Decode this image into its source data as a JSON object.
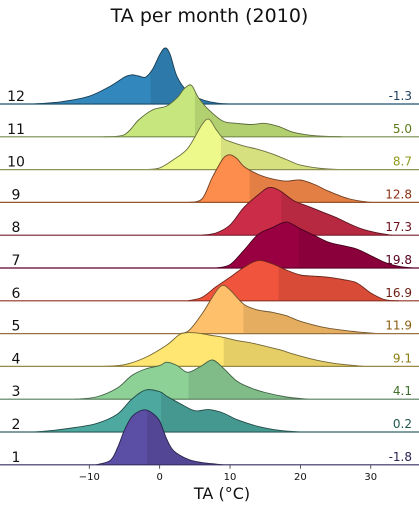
{
  "chart_data": {
    "type": "ridgeline",
    "title": "TA per month (2010)",
    "xlabel": "TA (°C)",
    "xlim": [
      -18,
      36
    ],
    "xticks": [
      -10,
      0,
      10,
      20,
      30
    ],
    "rows": [
      {
        "month": "12",
        "mean": -1.3,
        "mean_label": "-1.3",
        "color": "#3288bd",
        "label_color": "#1e3d5c",
        "density": [
          [
            -18,
            0.0
          ],
          [
            -14,
            0.04
          ],
          [
            -10,
            0.14
          ],
          [
            -7,
            0.32
          ],
          [
            -5,
            0.48
          ],
          [
            -4,
            0.52
          ],
          [
            -3,
            0.5
          ],
          [
            -2,
            0.48
          ],
          [
            -1,
            0.62
          ],
          [
            0,
            0.88
          ],
          [
            0.8,
            1.0
          ],
          [
            1.5,
            0.88
          ],
          [
            2.5,
            0.48
          ],
          [
            4,
            0.22
          ],
          [
            6,
            0.08
          ],
          [
            8,
            0.02
          ],
          [
            10,
            0.0
          ]
        ]
      },
      {
        "month": "11",
        "mean": 5.0,
        "mean_label": "5.0",
        "color": "#c7e77e",
        "label_color": "#5e7a1a",
        "density": [
          [
            -8,
            0.0
          ],
          [
            -5,
            0.04
          ],
          [
            -3,
            0.3
          ],
          [
            -1,
            0.48
          ],
          [
            1,
            0.55
          ],
          [
            2.5,
            0.7
          ],
          [
            3.5,
            0.86
          ],
          [
            4.5,
            0.92
          ],
          [
            5.5,
            0.7
          ],
          [
            7,
            0.48
          ],
          [
            9,
            0.28
          ],
          [
            11,
            0.24
          ],
          [
            13,
            0.22
          ],
          [
            15,
            0.24
          ],
          [
            17,
            0.18
          ],
          [
            19,
            0.08
          ],
          [
            22,
            0.02
          ],
          [
            26,
            0.0
          ]
        ]
      },
      {
        "month": "10",
        "mean": 8.7,
        "mean_label": "8.7",
        "color": "#eef98c",
        "label_color": "#8f9a1e",
        "density": [
          [
            -2,
            0.0
          ],
          [
            0,
            0.03
          ],
          [
            2,
            0.18
          ],
          [
            4,
            0.38
          ],
          [
            6,
            0.8
          ],
          [
            7,
            0.9
          ],
          [
            8,
            0.72
          ],
          [
            9,
            0.56
          ],
          [
            10,
            0.5
          ],
          [
            12,
            0.42
          ],
          [
            14,
            0.36
          ],
          [
            16,
            0.28
          ],
          [
            18,
            0.18
          ],
          [
            20,
            0.08
          ],
          [
            23,
            0.02
          ],
          [
            26,
            0.0
          ]
        ]
      },
      {
        "month": "9",
        "mean": 12.8,
        "mean_label": "12.8",
        "color": "#fc8d4c",
        "label_color": "#8a3010",
        "density": [
          [
            4,
            0.0
          ],
          [
            6,
            0.06
          ],
          [
            7.5,
            0.45
          ],
          [
            9,
            0.78
          ],
          [
            10,
            0.85
          ],
          [
            11,
            0.78
          ],
          [
            12,
            0.64
          ],
          [
            14,
            0.5
          ],
          [
            16,
            0.42
          ],
          [
            18,
            0.38
          ],
          [
            20,
            0.4
          ],
          [
            22,
            0.32
          ],
          [
            24,
            0.2
          ],
          [
            27,
            0.06
          ],
          [
            30,
            0.0
          ]
        ]
      },
      {
        "month": "8",
        "mean": 17.3,
        "mean_label": "17.3",
        "color": "#cb2d48",
        "label_color": "#6a0e1c",
        "density": [
          [
            6,
            0.0
          ],
          [
            8,
            0.04
          ],
          [
            10,
            0.18
          ],
          [
            12,
            0.5
          ],
          [
            14,
            0.72
          ],
          [
            15.5,
            0.85
          ],
          [
            17,
            0.8
          ],
          [
            19,
            0.62
          ],
          [
            21,
            0.52
          ],
          [
            23,
            0.42
          ],
          [
            25,
            0.32
          ],
          [
            27,
            0.2
          ],
          [
            29,
            0.1
          ],
          [
            31,
            0.04
          ],
          [
            33,
            0.0
          ]
        ]
      },
      {
        "month": "7",
        "mean": 19.8,
        "mean_label": "19.8",
        "color": "#990042",
        "label_color": "#55001f",
        "density": [
          [
            8,
            0.0
          ],
          [
            10,
            0.06
          ],
          [
            12,
            0.32
          ],
          [
            14,
            0.6
          ],
          [
            16,
            0.72
          ],
          [
            18,
            0.82
          ],
          [
            20,
            0.7
          ],
          [
            22,
            0.58
          ],
          [
            24,
            0.46
          ],
          [
            26,
            0.4
          ],
          [
            28,
            0.34
          ],
          [
            30,
            0.22
          ],
          [
            32,
            0.1
          ],
          [
            34,
            0.03
          ],
          [
            36,
            0.0
          ]
        ]
      },
      {
        "month": "6",
        "mean": 16.9,
        "mean_label": "16.9",
        "color": "#f0543d",
        "label_color": "#6b2012",
        "density": [
          [
            4,
            0.0
          ],
          [
            6,
            0.06
          ],
          [
            8,
            0.25
          ],
          [
            10,
            0.42
          ],
          [
            12,
            0.6
          ],
          [
            14,
            0.72
          ],
          [
            16,
            0.66
          ],
          [
            18,
            0.55
          ],
          [
            20,
            0.46
          ],
          [
            22,
            0.44
          ],
          [
            24,
            0.42
          ],
          [
            26,
            0.38
          ],
          [
            28,
            0.32
          ],
          [
            30,
            0.14
          ],
          [
            32,
            0.02
          ],
          [
            34,
            0.0
          ]
        ]
      },
      {
        "month": "5",
        "mean": 11.9,
        "mean_label": "11.9",
        "color": "#fec06b",
        "label_color": "#8a5d10",
        "density": [
          [
            2,
            0.0
          ],
          [
            4,
            0.04
          ],
          [
            6,
            0.35
          ],
          [
            8,
            0.75
          ],
          [
            9,
            0.86
          ],
          [
            10,
            0.78
          ],
          [
            12,
            0.52
          ],
          [
            14,
            0.42
          ],
          [
            16,
            0.38
          ],
          [
            18,
            0.32
          ],
          [
            20,
            0.22
          ],
          [
            23,
            0.12
          ],
          [
            26,
            0.06
          ],
          [
            29,
            0.02
          ],
          [
            31,
            0.0
          ]
        ]
      },
      {
        "month": "4",
        "mean": 9.1,
        "mean_label": "9.1",
        "color": "#ffe572",
        "label_color": "#8a7d10",
        "density": [
          [
            -8,
            0.0
          ],
          [
            -5,
            0.03
          ],
          [
            -2,
            0.16
          ],
          [
            1,
            0.38
          ],
          [
            3,
            0.58
          ],
          [
            5,
            0.6
          ],
          [
            7,
            0.56
          ],
          [
            9,
            0.52
          ],
          [
            11,
            0.46
          ],
          [
            13,
            0.42
          ],
          [
            15,
            0.36
          ],
          [
            17,
            0.3
          ],
          [
            19,
            0.22
          ],
          [
            22,
            0.12
          ],
          [
            25,
            0.05
          ],
          [
            29,
            0.0
          ]
        ]
      },
      {
        "month": "3",
        "mean": 4.1,
        "mean_label": "4.1",
        "color": "#8ed196",
        "label_color": "#3e6e2a",
        "density": [
          [
            -12,
            0.0
          ],
          [
            -9,
            0.04
          ],
          [
            -6,
            0.2
          ],
          [
            -4,
            0.42
          ],
          [
            -2,
            0.54
          ],
          [
            0,
            0.6
          ],
          [
            1,
            0.66
          ],
          [
            2.5,
            0.6
          ],
          [
            4,
            0.48
          ],
          [
            6,
            0.6
          ],
          [
            7.5,
            0.7
          ],
          [
            9,
            0.56
          ],
          [
            11,
            0.32
          ],
          [
            13,
            0.2
          ],
          [
            15,
            0.12
          ],
          [
            18,
            0.04
          ],
          [
            21,
            0.0
          ]
        ]
      },
      {
        "month": "2",
        "mean": 0.2,
        "mean_label": "0.2",
        "color": "#4da9a0",
        "label_color": "#20574f",
        "density": [
          [
            -18,
            0.0
          ],
          [
            -15,
            0.03
          ],
          [
            -12,
            0.08
          ],
          [
            -9,
            0.15
          ],
          [
            -6,
            0.32
          ],
          [
            -4,
            0.58
          ],
          [
            -2,
            0.75
          ],
          [
            0,
            0.72
          ],
          [
            1,
            0.64
          ],
          [
            3,
            0.5
          ],
          [
            5,
            0.38
          ],
          [
            7,
            0.4
          ],
          [
            9,
            0.34
          ],
          [
            11,
            0.22
          ],
          [
            14,
            0.1
          ],
          [
            17,
            0.03
          ],
          [
            20,
            0.0
          ]
        ]
      },
      {
        "month": "1",
        "mean": -1.8,
        "mean_label": "-1.8",
        "color": "#5b4ea5",
        "label_color": "#2b2452",
        "density": [
          [
            -9,
            0.0
          ],
          [
            -7,
            0.08
          ],
          [
            -6,
            0.3
          ],
          [
            -5,
            0.62
          ],
          [
            -4,
            0.85
          ],
          [
            -3,
            0.95
          ],
          [
            -2,
            0.98
          ],
          [
            -1,
            0.92
          ],
          [
            0,
            0.78
          ],
          [
            1,
            0.46
          ],
          [
            2,
            0.25
          ],
          [
            4,
            0.1
          ],
          [
            6,
            0.04
          ],
          [
            9,
            0.0
          ]
        ]
      }
    ]
  }
}
